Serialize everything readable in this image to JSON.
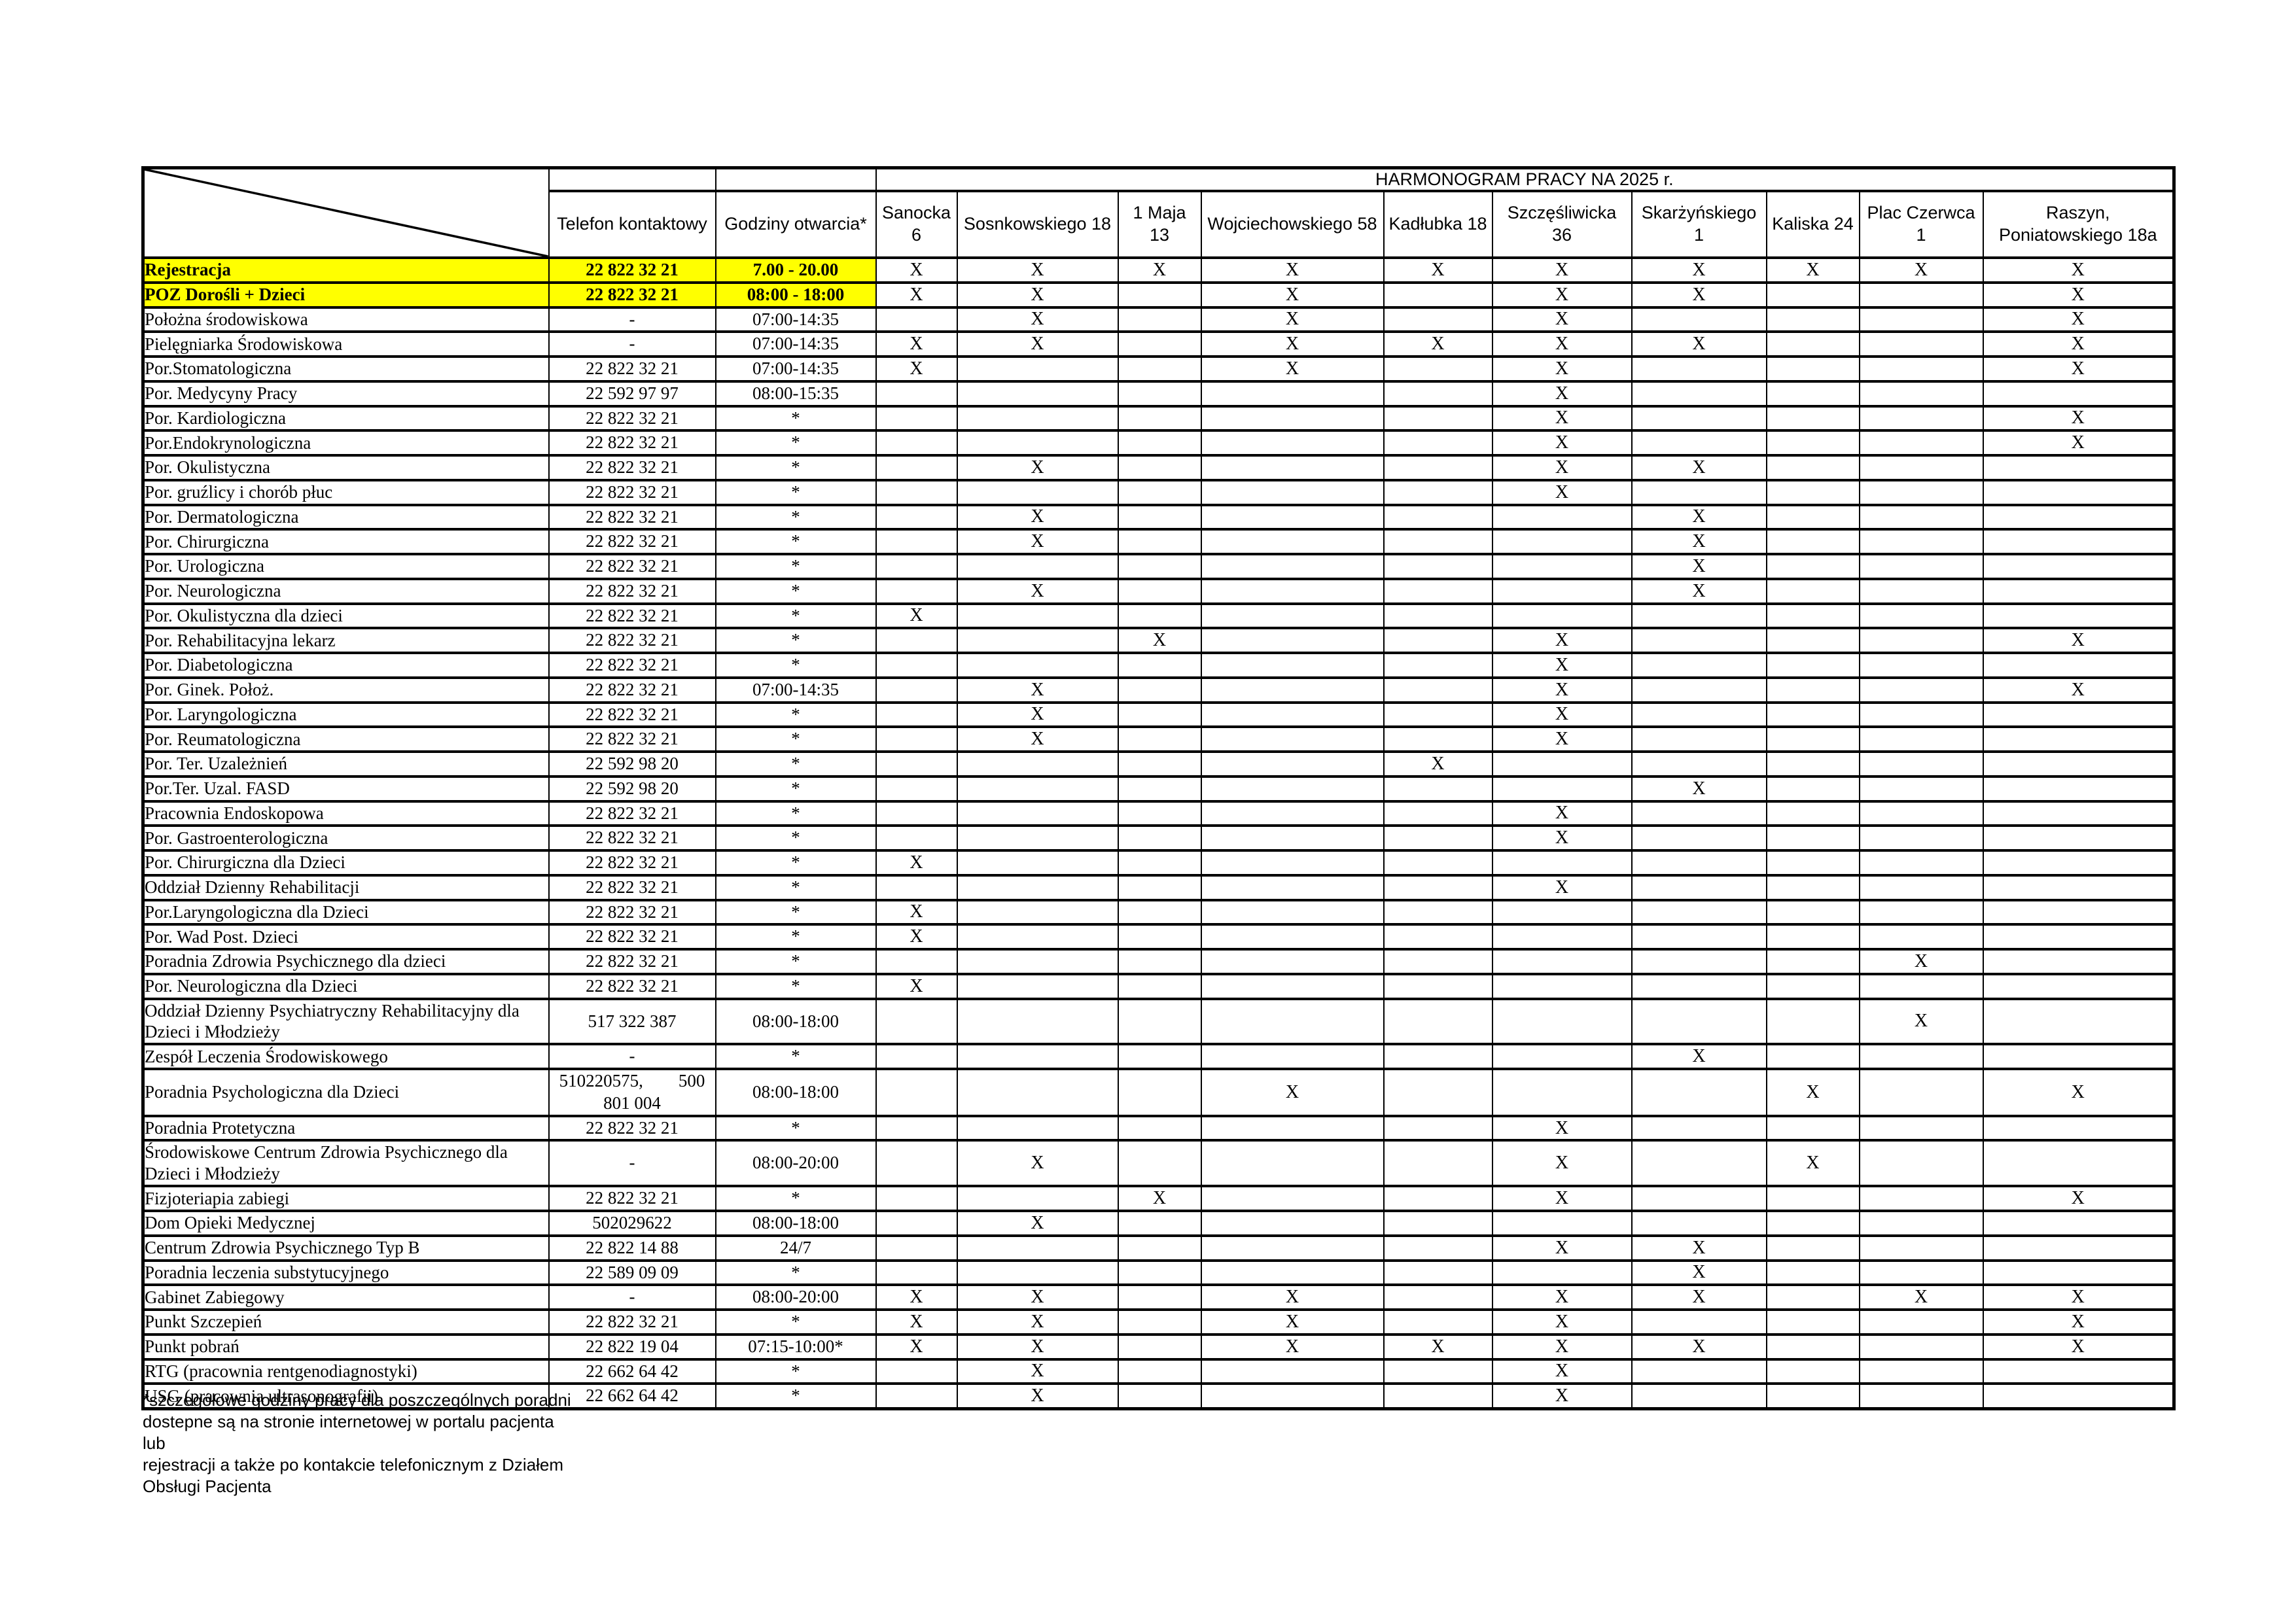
{
  "banner": "HARMONOGRAM PRACY NA 2025 r.",
  "mark": "X",
  "colors": {
    "highlight": "#ffff00",
    "border": "#000000",
    "text": "#000000"
  },
  "header": {
    "phone_label": "Telefon kontaktowy",
    "hours_label": "Godziny otwarcia*"
  },
  "locations": [
    "Sanocka 6",
    "Sosnkowskiego 18",
    "1 Maja 13",
    "Wojciechowskiego 58",
    "Kadłubka 18",
    "Szczęśliwicka 36",
    "Skarżyńskiego 1",
    "Kaliska 24",
    "Plac Czerwca 1",
    "Raszyn, Poniatowskiego 18a"
  ],
  "rows": [
    {
      "name": "Rejestracja",
      "phone": "22 822 32 21",
      "hours": "7.00 - 20.00",
      "marks": [
        0,
        1,
        2,
        3,
        4,
        5,
        6,
        7,
        8,
        9
      ],
      "highlight": true
    },
    {
      "name": "POZ Dorośli + Dzieci",
      "phone": "22 822 32 21",
      "hours": "08:00 - 18:00",
      "marks": [
        0,
        1,
        3,
        5,
        6,
        9
      ],
      "highlight": true
    },
    {
      "name": "Położna środowiskowa",
      "phone": "-",
      "hours": "07:00-14:35",
      "marks": [
        1,
        3,
        5,
        9
      ],
      "highlight": false
    },
    {
      "name": "Pielęgniarka Środowiskowa",
      "phone": "-",
      "hours": "07:00-14:35",
      "marks": [
        0,
        1,
        3,
        4,
        5,
        6,
        9
      ],
      "highlight": false
    },
    {
      "name": "Por.Stomatologiczna",
      "phone": "22 822 32 21",
      "hours": "07:00-14:35",
      "marks": [
        0,
        3,
        5,
        9
      ],
      "highlight": false
    },
    {
      "name": "Por. Medycyny Pracy",
      "phone": "22 592 97 97",
      "hours": "08:00-15:35",
      "marks": [
        5
      ],
      "highlight": false
    },
    {
      "name": "Por. Kardiologiczna",
      "phone": "22 822 32 21",
      "hours": "*",
      "marks": [
        5,
        9
      ],
      "highlight": false
    },
    {
      "name": "Por.Endokrynologiczna",
      "phone": "22 822 32 21",
      "hours": "*",
      "marks": [
        5,
        9
      ],
      "highlight": false
    },
    {
      "name": "Por. Okulistyczna",
      "phone": "22 822 32 21",
      "hours": "*",
      "marks": [
        1,
        5,
        6
      ],
      "highlight": false
    },
    {
      "name": "Por. gruźlicy i chorób płuc",
      "phone": "22 822 32 21",
      "hours": "*",
      "marks": [
        5
      ],
      "highlight": false
    },
    {
      "name": "Por. Dermatologiczna",
      "phone": "22 822 32 21",
      "hours": "*",
      "marks": [
        1,
        6
      ],
      "highlight": false
    },
    {
      "name": "Por. Chirurgiczna",
      "phone": "22 822 32 21",
      "hours": "*",
      "marks": [
        1,
        6
      ],
      "highlight": false
    },
    {
      "name": "Por. Urologiczna",
      "phone": "22 822 32 21",
      "hours": "*",
      "marks": [
        6
      ],
      "highlight": false
    },
    {
      "name": "Por. Neurologiczna",
      "phone": "22 822 32 21",
      "hours": "*",
      "marks": [
        1,
        6
      ],
      "highlight": false
    },
    {
      "name": "Por. Okulistyczna dla dzieci",
      "phone": "22 822 32 21",
      "hours": "*",
      "marks": [
        0
      ],
      "highlight": false
    },
    {
      "name": "Por. Rehabilitacyjna lekarz",
      "phone": "22 822 32 21",
      "hours": "*",
      "marks": [
        2,
        5,
        9
      ],
      "highlight": false
    },
    {
      "name": "Por. Diabetologiczna",
      "phone": "22 822 32 21",
      "hours": "*",
      "marks": [
        5
      ],
      "highlight": false
    },
    {
      "name": "Por. Ginek. Położ.",
      "phone": "22 822 32 21",
      "hours": "07:00-14:35",
      "marks": [
        1,
        5,
        9
      ],
      "highlight": false
    },
    {
      "name": "Por. Laryngologiczna",
      "phone": "22 822 32 21",
      "hours": "*",
      "marks": [
        1,
        5
      ],
      "highlight": false
    },
    {
      "name": "Por. Reumatologiczna",
      "phone": "22 822 32 21",
      "hours": "*",
      "marks": [
        1,
        5
      ],
      "highlight": false
    },
    {
      "name": "Por. Ter. Uzależnień",
      "phone": "22 592 98 20",
      "hours": "*",
      "marks": [
        4
      ],
      "highlight": false
    },
    {
      "name": "Por.Ter. Uzal. FASD",
      "phone": "22 592 98 20",
      "hours": "*",
      "marks": [
        6
      ],
      "highlight": false
    },
    {
      "name": "Pracownia Endoskopowa",
      "phone": "22 822 32 21",
      "hours": "*",
      "marks": [
        5
      ],
      "highlight": false
    },
    {
      "name": "Por. Gastroenterologiczna",
      "phone": "22 822 32 21",
      "hours": "*",
      "marks": [
        5
      ],
      "highlight": false
    },
    {
      "name": "Por. Chirurgiczna dla Dzieci",
      "phone": "22 822 32 21",
      "hours": "*",
      "marks": [
        0
      ],
      "highlight": false
    },
    {
      "name": "Oddział Dzienny Rehabilitacji",
      "phone": "22 822 32 21",
      "hours": "*",
      "marks": [
        5
      ],
      "highlight": false
    },
    {
      "name": "Por.Laryngologiczna dla Dzieci",
      "phone": "22 822 32 21",
      "hours": "*",
      "marks": [
        0
      ],
      "highlight": false
    },
    {
      "name": "Por. Wad Post. Dzieci",
      "phone": "22 822 32 21",
      "hours": "*",
      "marks": [
        0
      ],
      "highlight": false
    },
    {
      "name": "Poradnia Zdrowia Psychicznego dla dzieci",
      "phone": "22 822 32 21",
      "hours": "*",
      "marks": [
        8
      ],
      "highlight": false
    },
    {
      "name": "Por. Neurologiczna dla Dzieci",
      "phone": "22 822 32 21",
      "hours": "*",
      "marks": [
        0
      ],
      "highlight": false
    },
    {
      "name": "Oddział Dzienny Psychiatryczny Rehabilitacyjny dla Dzieci i Młodzieży",
      "phone": "517 322 387",
      "hours": "08:00-18:00",
      "marks": [
        8
      ],
      "highlight": false
    },
    {
      "name": "Zespół Leczenia Środowiskowego",
      "phone": "-",
      "hours": "*",
      "marks": [
        6
      ],
      "highlight": false
    },
    {
      "name": "Poradnia Psychologiczna dla Dzieci",
      "phone": "510220575,        500\n801 004",
      "hours": "08:00-18:00",
      "marks": [
        3,
        7,
        9
      ],
      "highlight": false
    },
    {
      "name": "Poradnia Protetyczna",
      "phone": "22 822 32 21",
      "hours": "*",
      "marks": [
        5
      ],
      "highlight": false
    },
    {
      "name": "Środowiskowe Centrum Zdrowia Psychicznego dla Dzieci i Młodzieży",
      "phone": "-",
      "hours": "08:00-20:00",
      "marks": [
        1,
        5,
        7
      ],
      "highlight": false
    },
    {
      "name": "Fizjoteriapia zabiegi",
      "phone": "22 822 32 21",
      "hours": "*",
      "marks": [
        2,
        5,
        9
      ],
      "highlight": false
    },
    {
      "name": "Dom Opieki Medycznej",
      "phone": "502029622",
      "hours": "08:00-18:00",
      "marks": [
        1
      ],
      "highlight": false
    },
    {
      "name": "Centrum Zdrowia Psychicznego Typ B",
      "phone": "22 822 14 88",
      "hours": "24/7",
      "marks": [
        5,
        6
      ],
      "highlight": false
    },
    {
      "name": "Poradnia leczenia substytucyjnego",
      "phone": "22 589 09 09",
      "hours": "*",
      "marks": [
        6
      ],
      "highlight": false
    },
    {
      "name": "Gabinet Zabiegowy",
      "phone": "-",
      "hours": "08:00-20:00",
      "marks": [
        0,
        1,
        3,
        5,
        6,
        8,
        9
      ],
      "highlight": false
    },
    {
      "name": "Punkt Szczepień",
      "phone": "22 822 32 21",
      "hours": "*",
      "marks": [
        0,
        1,
        3,
        5,
        9
      ],
      "highlight": false
    },
    {
      "name": "Punkt pobrań",
      "phone": "22 822 19 04",
      "hours": "07:15-10:00*",
      "marks": [
        0,
        1,
        3,
        4,
        5,
        6,
        9
      ],
      "highlight": false
    },
    {
      "name": "RTG (pracownia rentgenodiagnostyki)",
      "phone": "22 662 64 42",
      "hours": "*",
      "marks": [
        1,
        5
      ],
      "highlight": false
    },
    {
      "name": "USG (pracownia ultrasonografii)",
      "phone": "22 662 64 42",
      "hours": "*",
      "marks": [
        1,
        5
      ],
      "highlight": false
    }
  ],
  "footnote": "*szczegółowe godziny pracy dla poszczególnych poradni\ndostepne są na stronie internetowej w portalu pacjenta lub\nrejestracji a także po kontakcie telefonicznym z Działem\nObsługi Pacjenta"
}
